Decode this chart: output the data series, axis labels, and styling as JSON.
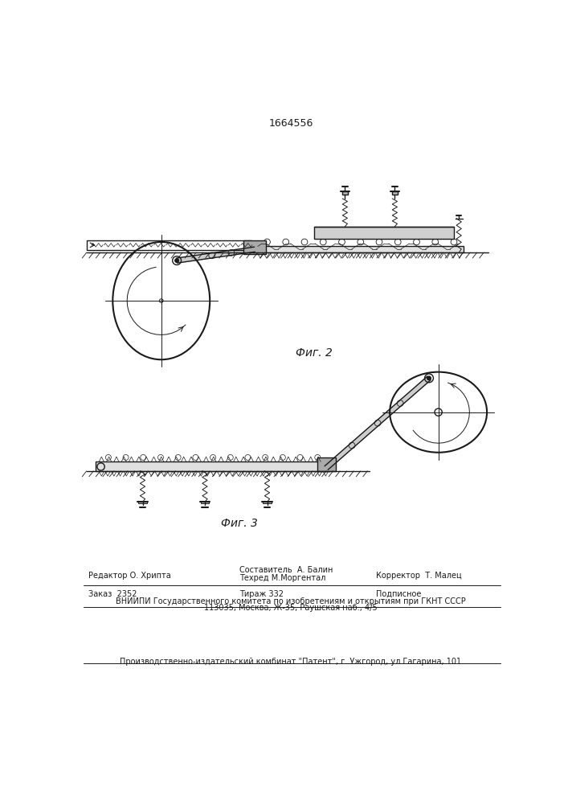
{
  "patent_number": "1664556",
  "fig2_label": "Фиг. 2",
  "fig3_label": "Фиг. 3",
  "footer_line1_left": "Редактор О. Хрипта",
  "footer_line1_center1": "Составитель  А. Балин",
  "footer_line1_center2": "Техред М.Моргентал",
  "footer_line1_right": "Корректор  Т. Малец",
  "footer_line2_left": "Заказ  2352",
  "footer_line2_center": "Тираж 332",
  "footer_line2_right": "Подписное",
  "footer_line3": "ВНИИПИ Государственного комитета по изобретениям и открытиям при ГКНТ СССР",
  "footer_line4": "113035, Москва, Ж-35, Раушская наб., 4/5",
  "footer_line5": "Производственно-издательский комбинат \"Патент\", г. Ужгород, ул.Гагарина, 101",
  "bg_color": "#ffffff",
  "line_color": "#1a1a1a"
}
